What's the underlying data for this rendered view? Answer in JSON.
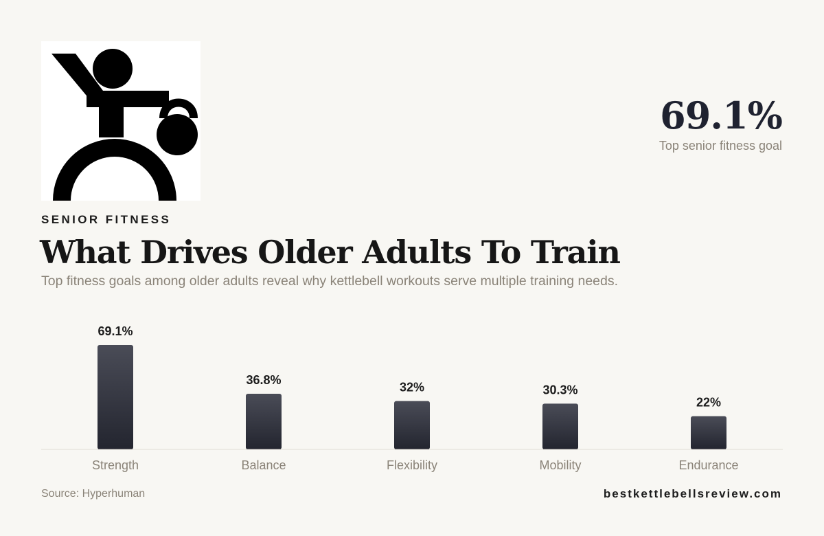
{
  "header": {
    "kicker": "SENIOR FITNESS",
    "title": "What Drives Older Adults To Train",
    "subtitle": "Top fitness goals among older adults reveal why kettlebell workouts serve multiple training needs."
  },
  "highlight": {
    "value": "69.1%",
    "label": "Top senior fitness goal"
  },
  "logo": {
    "icon": "kettlebell-athlete-icon"
  },
  "chart_data": {
    "type": "bar",
    "categories": [
      "Strength",
      "Balance",
      "Flexibility",
      "Mobility",
      "Endurance"
    ],
    "values": [
      69.1,
      36.8,
      32,
      30.3,
      22
    ],
    "data_labels": [
      "69.1%",
      "36.8%",
      "32%",
      "30.3%",
      "22%"
    ],
    "ylim": [
      0,
      69.1
    ],
    "grid": false,
    "legend": "none",
    "colors": {
      "bar_top": "#4a4c57",
      "bar_bottom": "#23252f",
      "baseline": "#e0ddd6",
      "label": "#1c1c1c",
      "category": "#8a8378"
    }
  },
  "footer": {
    "source": "Source: Hyperhuman",
    "site": "bestkettlebellsreview.com"
  }
}
